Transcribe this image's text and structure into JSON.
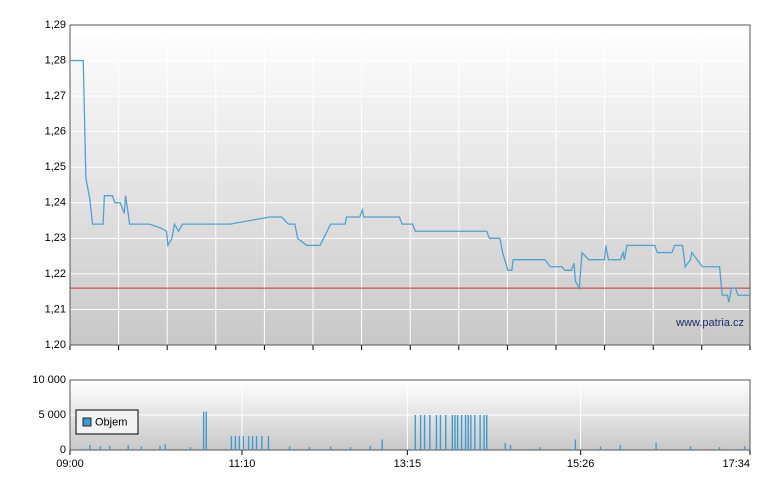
{
  "chart_data": [
    {
      "type": "line",
      "color": "#4fa3cf",
      "x": [
        "09:00",
        "09:10",
        "09:12",
        "09:15",
        "09:17",
        "09:25",
        "09:26",
        "09:32",
        "09:34",
        "09:38",
        "09:41",
        "09:42",
        "09:44",
        "09:45",
        "10:00",
        "10:08",
        "10:13",
        "10:14",
        "10:17",
        "10:19",
        "10:22",
        "10:25",
        "11:01",
        "11:31",
        "11:40",
        "11:45",
        "11:50",
        "11:52",
        "11:59",
        "12:09",
        "12:17",
        "12:28",
        "12:29",
        "12:39",
        "12:41",
        "12:42",
        "13:09",
        "13:11",
        "13:19",
        "13:21",
        "14:15",
        "14:17",
        "14:25",
        "14:27",
        "14:31",
        "14:34",
        "14:35",
        "14:59",
        "15:03",
        "15:12",
        "15:14",
        "15:19",
        "15:21",
        "15:22",
        "15:25",
        "15:27",
        "15:32",
        "15:44",
        "15:45",
        "15:47",
        "15:56",
        "15:58",
        "15:59",
        "16:01",
        "16:22",
        "16:24",
        "16:35",
        "16:37",
        "16:43",
        "16:45",
        "16:49",
        "16:50",
        "16:54",
        "16:58",
        "17:11",
        "17:13",
        "17:17",
        "17:18",
        "17:20",
        "17:23",
        "17:25",
        "17:34"
      ],
      "values": [
        1.28,
        1.28,
        1.247,
        1.241,
        1.234,
        1.234,
        1.242,
        1.242,
        1.24,
        1.24,
        1.237,
        1.242,
        1.237,
        1.234,
        1.234,
        1.233,
        1.232,
        1.228,
        1.23,
        1.234,
        1.232,
        1.234,
        1.234,
        1.236,
        1.236,
        1.234,
        1.234,
        1.23,
        1.228,
        1.228,
        1.234,
        1.234,
        1.236,
        1.236,
        1.238,
        1.236,
        1.236,
        1.234,
        1.234,
        1.232,
        1.232,
        1.23,
        1.23,
        1.226,
        1.221,
        1.221,
        1.224,
        1.224,
        1.222,
        1.222,
        1.221,
        1.221,
        1.223,
        1.218,
        1.216,
        1.226,
        1.224,
        1.224,
        1.228,
        1.224,
        1.224,
        1.226,
        1.224,
        1.228,
        1.228,
        1.226,
        1.226,
        1.228,
        1.228,
        1.222,
        1.224,
        1.226,
        1.224,
        1.222,
        1.222,
        1.214,
        1.214,
        1.212,
        1.216,
        1.216,
        1.214,
        1.214
      ],
      "reference_line": {
        "value": 1.216,
        "color": "#cc3333"
      },
      "source": "www.patria.cz",
      "xlim": [
        "09:00",
        "17:34"
      ],
      "ylim": [
        1.2,
        1.29
      ],
      "yticks": [
        {
          "value": 1.2,
          "label": "1,20"
        },
        {
          "value": 1.21,
          "label": "1,21"
        },
        {
          "value": 1.22,
          "label": "1,22"
        },
        {
          "value": 1.23,
          "label": "1,23"
        },
        {
          "value": 1.24,
          "label": "1,24"
        },
        {
          "value": 1.25,
          "label": "1,25"
        },
        {
          "value": 1.26,
          "label": "1,26"
        },
        {
          "value": 1.27,
          "label": "1,27"
        },
        {
          "value": 1.28,
          "label": "1,28"
        },
        {
          "value": 1.29,
          "label": "1,29"
        }
      ],
      "grid": true
    },
    {
      "type": "bar",
      "series": [
        {
          "name": "Objem",
          "color": "#3d9bd0",
          "x": [
            "09:15",
            "09:23",
            "09:30",
            "09:44",
            "09:54",
            "10:08",
            "10:12",
            "10:31",
            "10:41",
            "10:43",
            "11:02",
            "11:05",
            "11:08",
            "11:11",
            "11:15",
            "11:18",
            "11:21",
            "11:25",
            "11:30",
            "11:46",
            "12:01",
            "12:17",
            "12:32",
            "12:47",
            "12:56",
            "13:21",
            "13:25",
            "13:28",
            "13:32",
            "13:37",
            "13:40",
            "13:44",
            "13:49",
            "13:51",
            "13:53",
            "13:56",
            "13:59",
            "14:01",
            "14:03",
            "14:06",
            "14:10",
            "14:13",
            "14:15",
            "14:29",
            "14:33",
            "14:55",
            "15:22",
            "15:41",
            "15:56",
            "16:23",
            "16:49",
            "17:11",
            "17:30"
          ],
          "values": [
            700,
            500,
            600,
            700,
            500,
            600,
            800,
            400,
            5500,
            5500,
            2000,
            2000,
            2000,
            2000,
            2000,
            2000,
            2000,
            2000,
            2000,
            500,
            400,
            500,
            400,
            600,
            1500,
            5000,
            5000,
            5000,
            5000,
            5000,
            5000,
            5000,
            5000,
            5000,
            5000,
            5000,
            5000,
            5000,
            5000,
            5000,
            5000,
            5000,
            5000,
            1000,
            700,
            400,
            1500,
            500,
            700,
            1000,
            500,
            400,
            500
          ]
        }
      ],
      "legend": "bottom-left",
      "xlim": [
        "09:00",
        "17:34"
      ],
      "xticks": [
        "09:00",
        "11:10",
        "13:15",
        "15:26",
        "17:34"
      ],
      "ylim": [
        0,
        10000
      ],
      "yticks": [
        0,
        {
          "value": 5000,
          "label": "5 000"
        },
        {
          "value": 10000,
          "label": "10 000"
        }
      ],
      "grid": true
    }
  ]
}
